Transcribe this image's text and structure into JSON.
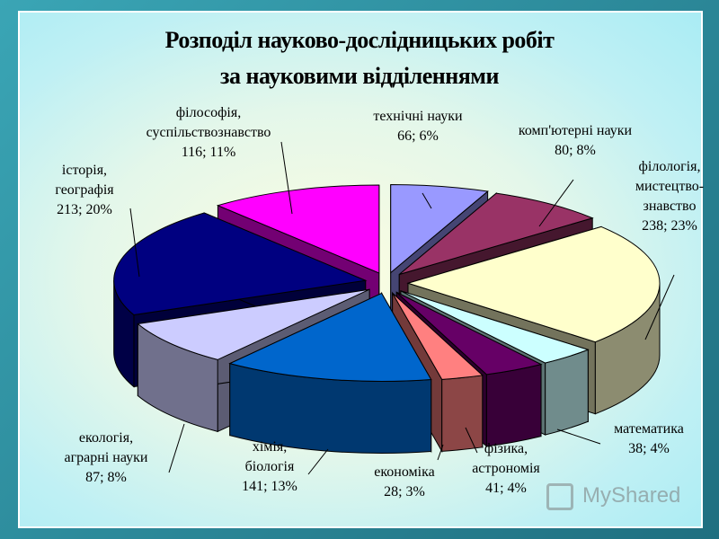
{
  "chart_data": {
    "type": "pie",
    "title_line1": "Розподіл науково-дослідницьких робіт",
    "title_line2": "за науковими відділеннями",
    "slices": [
      {
        "lines": [
          "технічні науки"
        ],
        "value_label": "66; 6%",
        "value": 66,
        "percent": 6,
        "color": "#9999ff"
      },
      {
        "lines": [
          "комп'ютерні науки"
        ],
        "value_label": "80; 8%",
        "value": 80,
        "percent": 8,
        "color": "#993366"
      },
      {
        "lines": [
          "філологія,",
          "мистецтво-",
          "знавство"
        ],
        "value_label": "238; 23%",
        "value": 238,
        "percent": 23,
        "color": "#ffffcc"
      },
      {
        "lines": [
          "математика"
        ],
        "value_label": "38; 4%",
        "value": 38,
        "percent": 4,
        "color": "#ccffff"
      },
      {
        "lines": [
          "фізика,",
          "астрономія"
        ],
        "value_label": "41; 4%",
        "value": 41,
        "percent": 4,
        "color": "#660066"
      },
      {
        "lines": [
          "економіка"
        ],
        "value_label": "28; 3%",
        "value": 28,
        "percent": 3,
        "color": "#ff8080"
      },
      {
        "lines": [
          "хімія,",
          "біологія"
        ],
        "value_label": "141; 13%",
        "value": 141,
        "percent": 13,
        "color": "#0066cc"
      },
      {
        "lines": [
          "екологія,",
          "аграрні науки"
        ],
        "value_label": "87; 8%",
        "value": 87,
        "percent": 8,
        "color": "#ccccff"
      },
      {
        "lines": [
          "історія,",
          "географія"
        ],
        "value_label": "213; 20%",
        "value": 213,
        "percent": 20,
        "color": "#000080"
      },
      {
        "lines": [
          "філософія,",
          "суспільствознавство"
        ],
        "value_label": "116; 11%",
        "value": 116,
        "percent": 11,
        "color": "#ff00ff"
      }
    ]
  },
  "watermark": "MyShared"
}
